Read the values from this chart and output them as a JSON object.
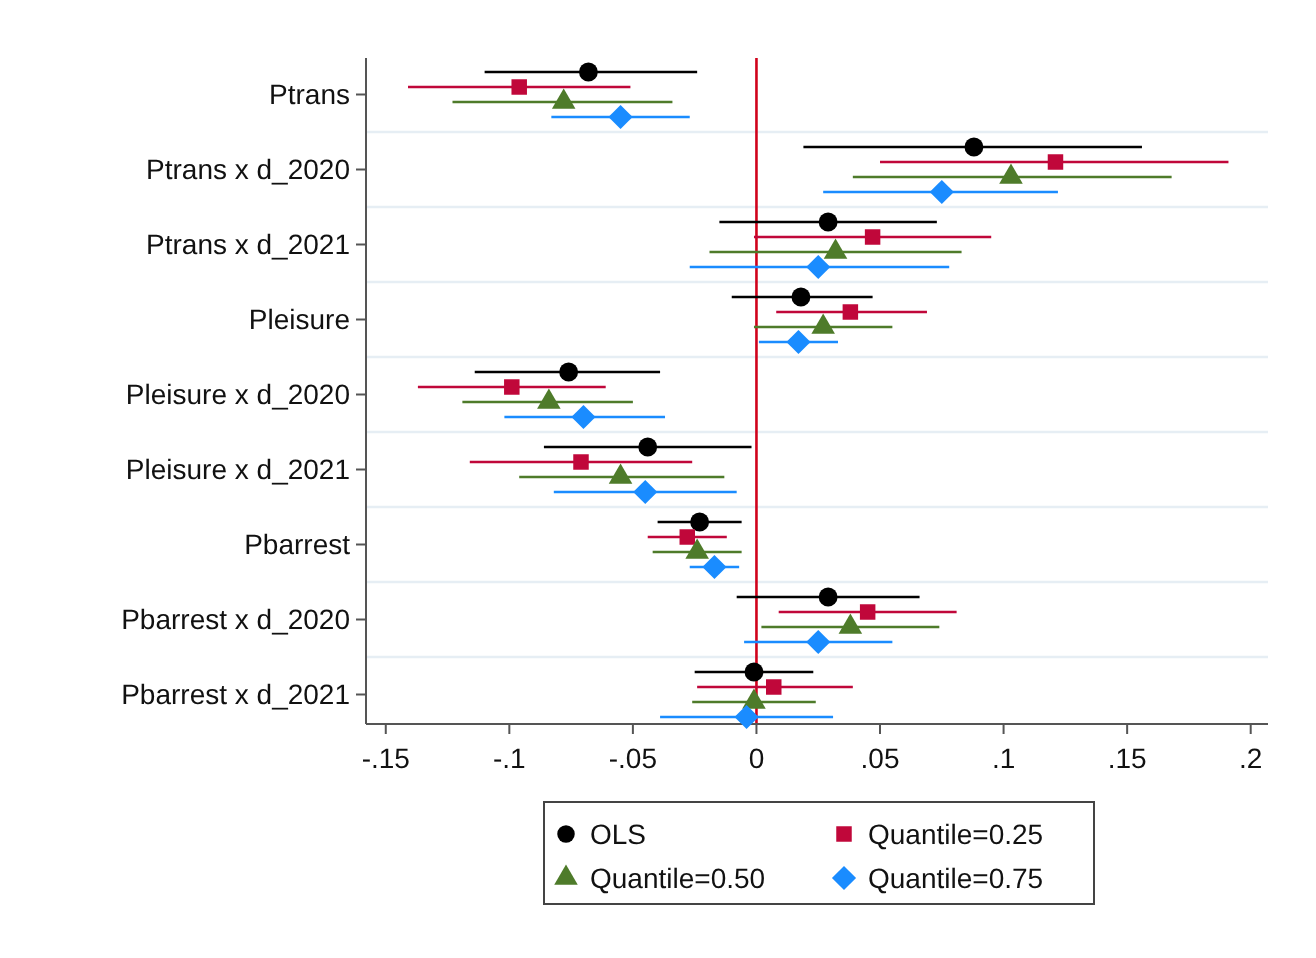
{
  "chart_data": {
    "type": "scatter",
    "orientation": "horizontal",
    "categories": [
      "Ptrans",
      "Ptrans x d_2020",
      "Ptrans x d_2021",
      "Pleisure",
      "Pleisure x d_2020",
      "Pleisure x d_2021",
      "Pbarrest",
      "Pbarrest x d_2020",
      "Pbarrest x d_2021"
    ],
    "series": [
      {
        "name": "OLS",
        "color": "#000000",
        "marker": "circle",
        "values": [
          -0.068,
          0.088,
          0.029,
          0.018,
          -0.076,
          -0.044,
          -0.023,
          0.029,
          -0.001
        ],
        "errors": [
          [
            -0.11,
            -0.024
          ],
          [
            0.019,
            0.156
          ],
          [
            -0.015,
            0.073
          ],
          [
            -0.01,
            0.047
          ],
          [
            -0.114,
            -0.039
          ],
          [
            -0.086,
            -0.002
          ],
          [
            -0.04,
            -0.006
          ],
          [
            -0.008,
            0.066
          ],
          [
            -0.025,
            0.023
          ]
        ]
      },
      {
        "name": "Quantile=0.25",
        "color": "#c0073a",
        "marker": "square",
        "values": [
          -0.096,
          0.121,
          0.047,
          0.038,
          -0.099,
          -0.071,
          -0.028,
          0.045,
          0.007
        ],
        "errors": [
          [
            -0.141,
            -0.051
          ],
          [
            0.05,
            0.191
          ],
          [
            -0.001,
            0.095
          ],
          [
            0.008,
            0.069
          ],
          [
            -0.137,
            -0.061
          ],
          [
            -0.116,
            -0.026
          ],
          [
            -0.044,
            -0.012
          ],
          [
            0.009,
            0.081
          ],
          [
            -0.024,
            0.039
          ]
        ]
      },
      {
        "name": "Quantile=0.50",
        "color": "#4e7b2a",
        "marker": "triangle",
        "values": [
          -0.078,
          0.103,
          0.032,
          0.027,
          -0.084,
          -0.055,
          -0.024,
          0.038,
          -0.001
        ],
        "errors": [
          [
            -0.123,
            -0.034
          ],
          [
            0.039,
            0.168
          ],
          [
            -0.019,
            0.083
          ],
          [
            -0.001,
            0.055
          ],
          [
            -0.119,
            -0.05
          ],
          [
            -0.096,
            -0.013
          ],
          [
            -0.042,
            -0.006
          ],
          [
            0.002,
            0.074
          ],
          [
            -0.026,
            0.024
          ]
        ]
      },
      {
        "name": "Quantile=0.75",
        "color": "#1a8cff",
        "marker": "diamond",
        "values": [
          -0.055,
          0.075,
          0.025,
          0.017,
          -0.07,
          -0.045,
          -0.017,
          0.025,
          -0.004
        ],
        "errors": [
          [
            -0.083,
            -0.027
          ],
          [
            0.027,
            0.122
          ],
          [
            -0.027,
            0.078
          ],
          [
            0.001,
            0.033
          ],
          [
            -0.102,
            -0.037
          ],
          [
            -0.082,
            -0.008
          ],
          [
            -0.027,
            -0.007
          ],
          [
            -0.005,
            0.055
          ],
          [
            -0.039,
            0.031
          ]
        ]
      }
    ],
    "xlim": [
      -0.158,
      0.207
    ],
    "xticks": [
      {
        "value": -0.15,
        "label": "-.15"
      },
      {
        "value": -0.1,
        "label": "-.1"
      },
      {
        "value": -0.05,
        "label": "-.05"
      },
      0,
      {
        "value": 0.05,
        "label": ".05"
      },
      {
        "value": 0.1,
        "label": ".1"
      },
      {
        "value": 0.15,
        "label": ".15"
      },
      {
        "value": 0.2,
        "label": ".2"
      }
    ],
    "ref_lines": [
      {
        "axis": "x",
        "value": 0,
        "color": "#d0021b"
      }
    ],
    "grid": "y",
    "legend": "bottom"
  }
}
